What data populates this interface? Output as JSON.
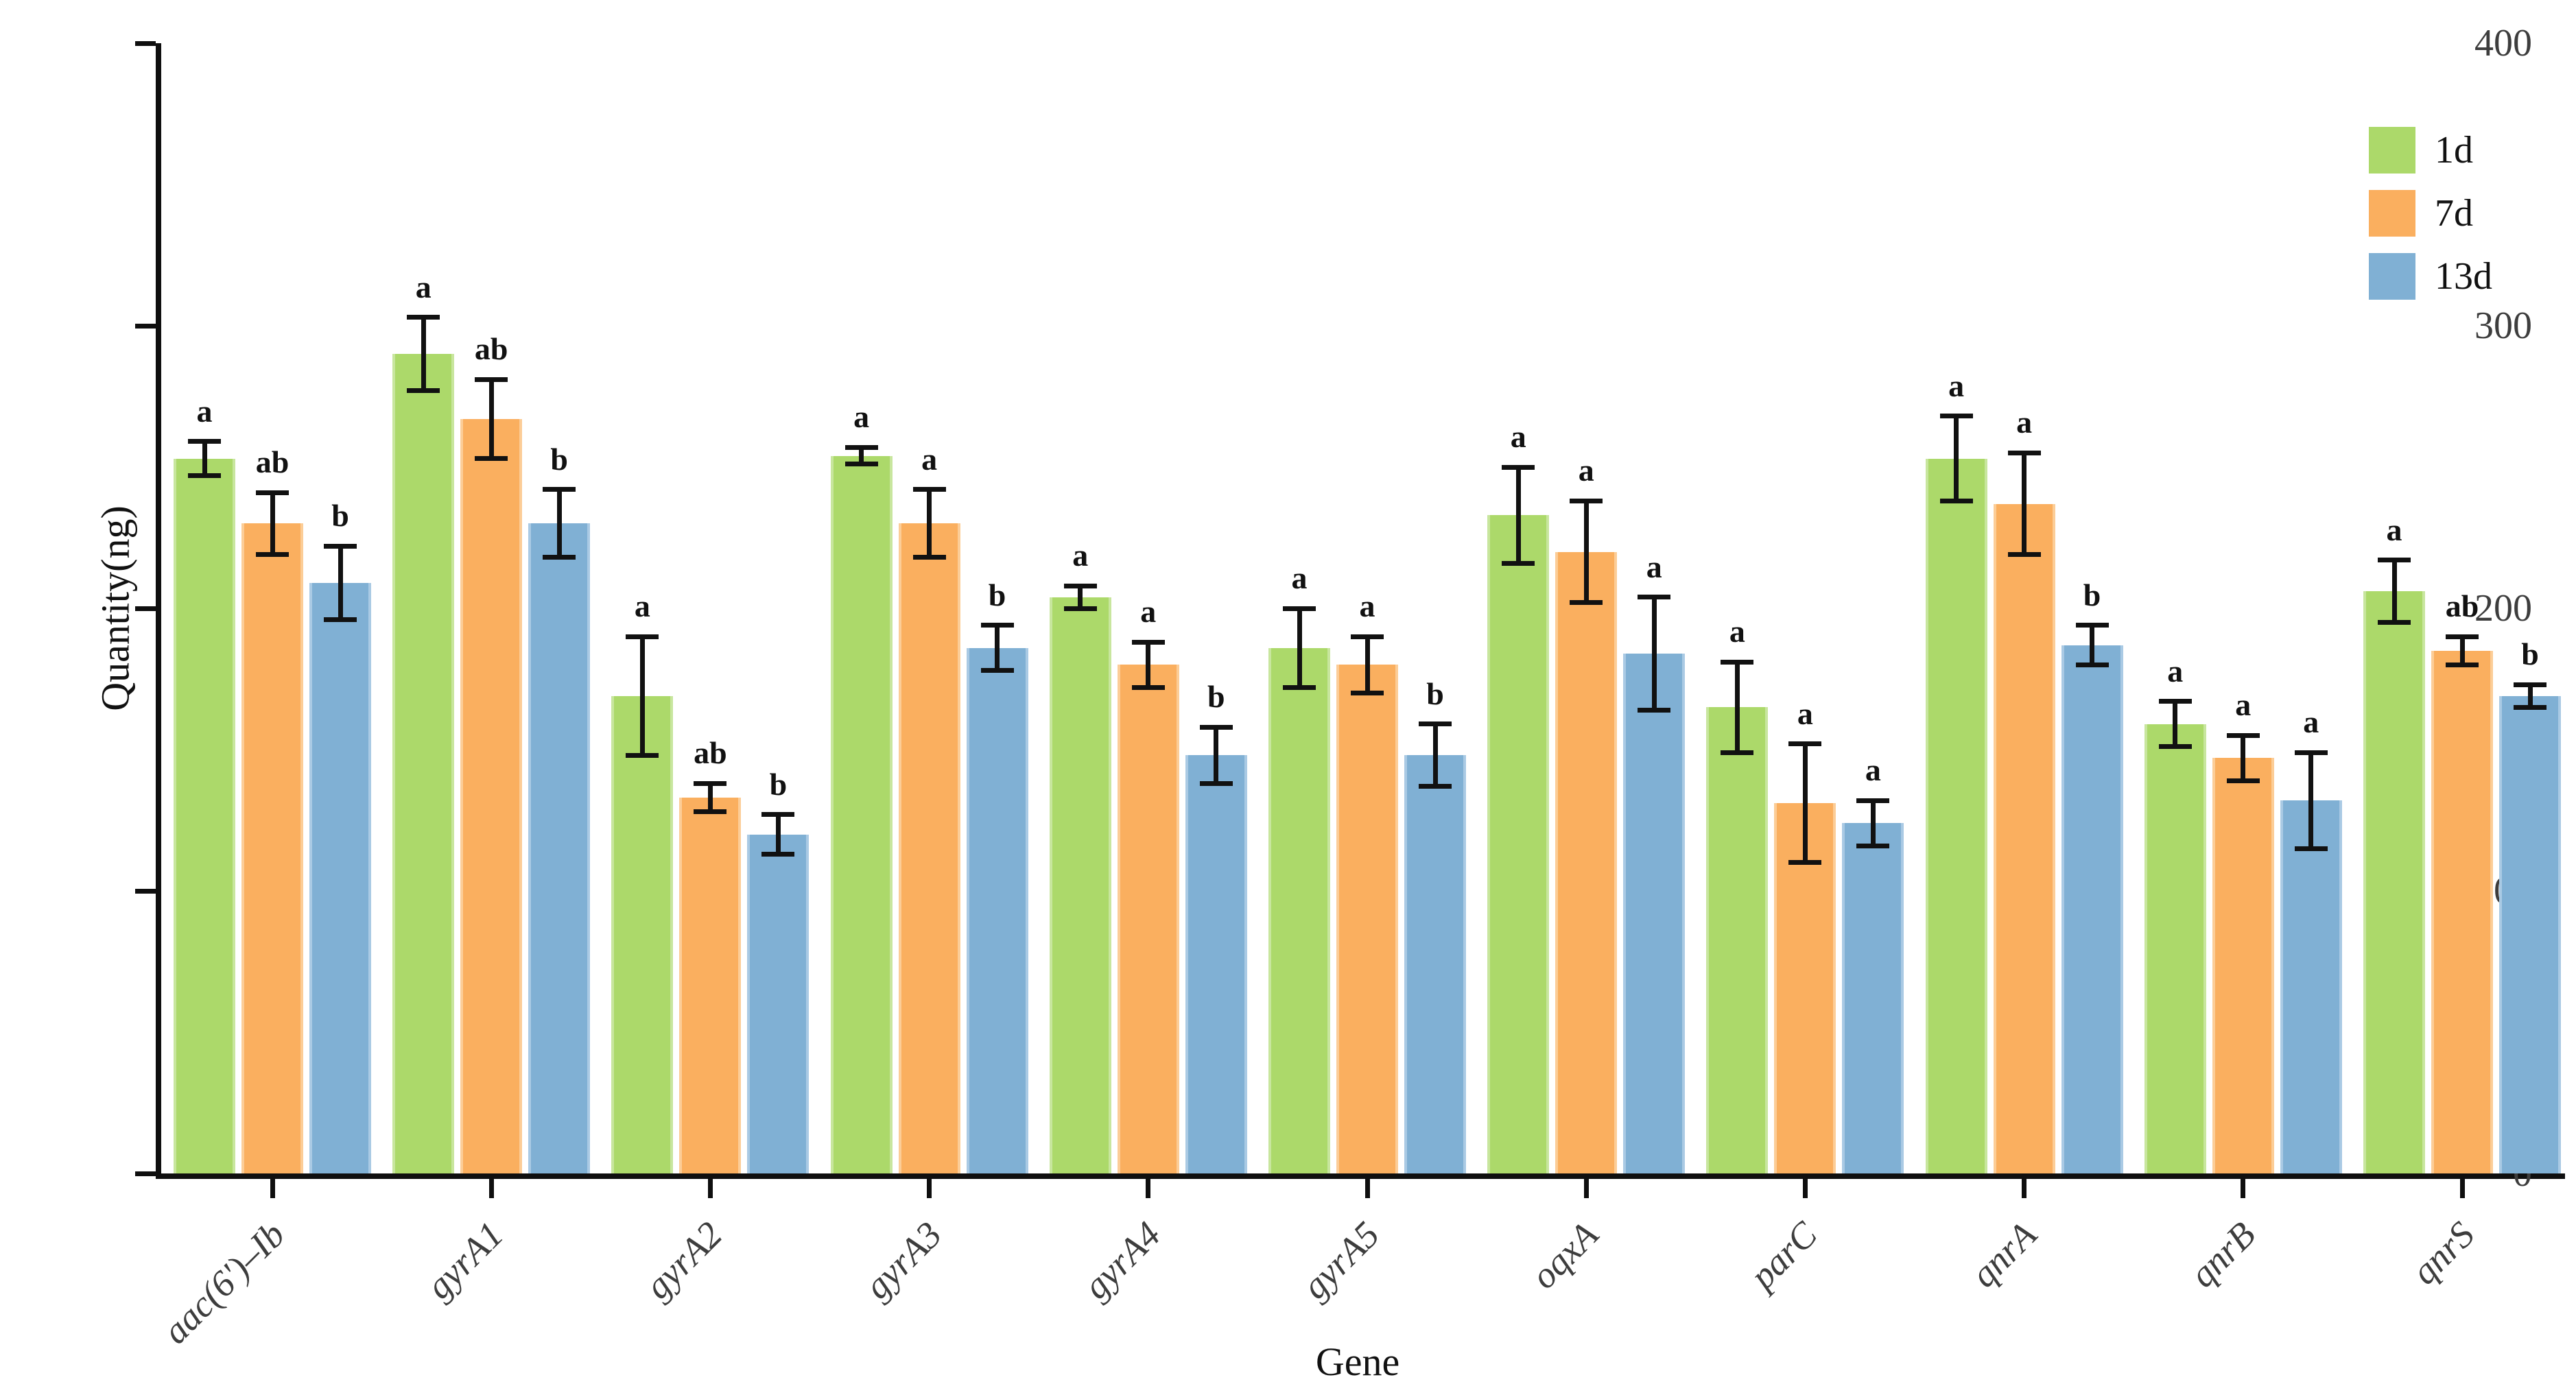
{
  "chart_data": {
    "type": "bar",
    "title": "",
    "xlabel": "Gene",
    "ylabel": "Quantity(ng)",
    "ylim": [
      0,
      400
    ],
    "yticks": [
      0,
      100,
      200,
      300,
      400
    ],
    "grid": false,
    "legend_position": "top-right",
    "categories": [
      "aac(6')–Ib",
      "gyrA1",
      "gyrA2",
      "gyrA3",
      "gyrA4",
      "gyrA5",
      "oqxA",
      "parC",
      "qnrA",
      "qnrB",
      "qnrS"
    ],
    "series": [
      {
        "name": "1d",
        "color": "#ACD96A",
        "edge_color": "#C8E69E",
        "values": [
          253,
          290,
          169,
          254,
          204,
          186,
          233,
          165,
          253,
          159,
          206
        ],
        "errors": [
          6,
          13,
          21,
          3,
          4,
          14,
          17,
          16,
          15,
          8,
          11
        ],
        "sig_letters": [
          "a",
          "a",
          "a",
          "a",
          "a",
          "a",
          "a",
          "a",
          "a",
          "a",
          "a"
        ]
      },
      {
        "name": "7d",
        "color": "#FAAF5F",
        "edge_color": "#FCCD97",
        "values": [
          230,
          267,
          133,
          230,
          180,
          180,
          220,
          131,
          237,
          147,
          185
        ],
        "errors": [
          11,
          14,
          5,
          12,
          8,
          10,
          18,
          21,
          18,
          8,
          5
        ],
        "sig_letters": [
          "ab",
          "ab",
          "ab",
          "a",
          "a",
          "a",
          "a",
          "a",
          "a",
          "a",
          "ab"
        ]
      },
      {
        "name": "13d",
        "color": "#80B0D4",
        "edge_color": "#AACAE4",
        "values": [
          209,
          230,
          120,
          186,
          148,
          148,
          184,
          124,
          187,
          132,
          169
        ],
        "errors": [
          13,
          12,
          7,
          8,
          10,
          11,
          20,
          8,
          7,
          17,
          4
        ],
        "sig_letters": [
          "b",
          "b",
          "b",
          "b",
          "b",
          "b",
          "a",
          "a",
          "b",
          "a",
          "b"
        ]
      }
    ]
  }
}
